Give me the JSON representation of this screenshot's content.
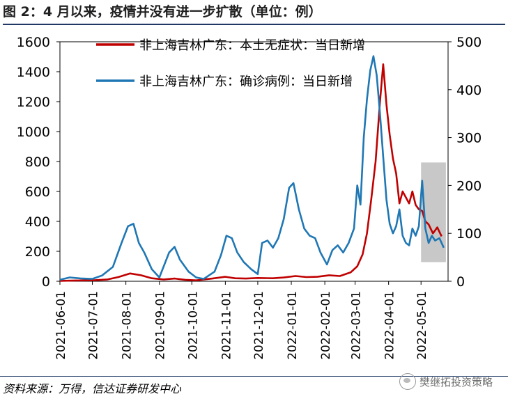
{
  "title": "图 2：4 月以来，疫情并没有进一步扩散（单位：例）",
  "source": "资料来源：万得，信达证券研发中心",
  "watermark": "樊继拓投资策略",
  "colors": {
    "series_red": "#c00000",
    "series_blue": "#1f77b4",
    "shade": "#c8c8c8"
  },
  "chart_data": {
    "type": "line",
    "x_ticks": [
      "2021-06-01",
      "2021-07-01",
      "2021-08-01",
      "2021-09-01",
      "2021-10-01",
      "2021-11-01",
      "2021-12-01",
      "2022-01-01",
      "2022-02-01",
      "2022-03-01",
      "2022-04-01",
      "2022-05-01"
    ],
    "y_left": {
      "ylim": [
        0,
        1600
      ],
      "ticks": [
        0,
        200,
        400,
        600,
        800,
        1000,
        1200,
        1400,
        1600
      ]
    },
    "y_right": {
      "ylim": [
        0,
        500
      ],
      "ticks": [
        0,
        100,
        200,
        300,
        400,
        500
      ]
    },
    "shaded_region": {
      "x": [
        "2022-05-01",
        "2022-05-24"
      ],
      "y_right": [
        40,
        248
      ]
    },
    "legend_position": "top-right",
    "series": [
      {
        "name": "非上海吉林广东：本土无症状：当日新增",
        "axis": "left",
        "points": [
          [
            "2021-06-01",
            3
          ],
          [
            "2021-06-15",
            5
          ],
          [
            "2021-07-01",
            6
          ],
          [
            "2021-07-15",
            12
          ],
          [
            "2021-07-25",
            28
          ],
          [
            "2021-08-05",
            52
          ],
          [
            "2021-08-15",
            40
          ],
          [
            "2021-08-25",
            20
          ],
          [
            "2021-09-05",
            12
          ],
          [
            "2021-09-15",
            18
          ],
          [
            "2021-09-25",
            10
          ],
          [
            "2021-10-05",
            6
          ],
          [
            "2021-10-20",
            18
          ],
          [
            "2021-11-01",
            30
          ],
          [
            "2021-11-10",
            20
          ],
          [
            "2021-11-20",
            18
          ],
          [
            "2021-12-01",
            22
          ],
          [
            "2021-12-15",
            20
          ],
          [
            "2021-12-25",
            25
          ],
          [
            "2022-01-05",
            35
          ],
          [
            "2022-01-15",
            28
          ],
          [
            "2022-01-25",
            30
          ],
          [
            "2022-02-05",
            40
          ],
          [
            "2022-02-15",
            35
          ],
          [
            "2022-02-25",
            60
          ],
          [
            "2022-03-03",
            100
          ],
          [
            "2022-03-08",
            180
          ],
          [
            "2022-03-12",
            320
          ],
          [
            "2022-03-16",
            550
          ],
          [
            "2022-03-20",
            800
          ],
          [
            "2022-03-24",
            1200
          ],
          [
            "2022-03-27",
            1450
          ],
          [
            "2022-03-30",
            1180
          ],
          [
            "2022-04-02",
            980
          ],
          [
            "2022-04-05",
            820
          ],
          [
            "2022-04-08",
            720
          ],
          [
            "2022-04-11",
            520
          ],
          [
            "2022-04-14",
            600
          ],
          [
            "2022-04-17",
            560
          ],
          [
            "2022-04-20",
            520
          ],
          [
            "2022-04-23",
            600
          ],
          [
            "2022-04-26",
            510
          ],
          [
            "2022-04-29",
            480
          ],
          [
            "2022-05-02",
            470
          ],
          [
            "2022-05-05",
            400
          ],
          [
            "2022-05-08",
            380
          ],
          [
            "2022-05-12",
            320
          ],
          [
            "2022-05-16",
            360
          ],
          [
            "2022-05-20",
            300
          ]
        ]
      },
      {
        "name": "非上海吉林广东：确诊病例：当日新增",
        "axis": "right",
        "points": [
          [
            "2021-06-01",
            3
          ],
          [
            "2021-06-10",
            8
          ],
          [
            "2021-06-20",
            6
          ],
          [
            "2021-07-01",
            5
          ],
          [
            "2021-07-10",
            12
          ],
          [
            "2021-07-20",
            30
          ],
          [
            "2021-07-28",
            80
          ],
          [
            "2021-08-03",
            115
          ],
          [
            "2021-08-08",
            120
          ],
          [
            "2021-08-13",
            80
          ],
          [
            "2021-08-18",
            60
          ],
          [
            "2021-08-25",
            25
          ],
          [
            "2021-09-01",
            8
          ],
          [
            "2021-09-10",
            60
          ],
          [
            "2021-09-15",
            72
          ],
          [
            "2021-09-20",
            45
          ],
          [
            "2021-09-28",
            20
          ],
          [
            "2021-10-05",
            8
          ],
          [
            "2021-10-12",
            5
          ],
          [
            "2021-10-22",
            20
          ],
          [
            "2021-10-28",
            55
          ],
          [
            "2021-11-02",
            95
          ],
          [
            "2021-11-07",
            90
          ],
          [
            "2021-11-12",
            60
          ],
          [
            "2021-11-18",
            40
          ],
          [
            "2021-11-25",
            25
          ],
          [
            "2021-12-01",
            15
          ],
          [
            "2021-12-05",
            80
          ],
          [
            "2021-12-10",
            85
          ],
          [
            "2021-12-15",
            70
          ],
          [
            "2021-12-20",
            90
          ],
          [
            "2021-12-25",
            130
          ],
          [
            "2021-12-30",
            195
          ],
          [
            "2022-01-03",
            205
          ],
          [
            "2022-01-08",
            150
          ],
          [
            "2022-01-13",
            110
          ],
          [
            "2022-01-18",
            95
          ],
          [
            "2022-01-23",
            90
          ],
          [
            "2022-01-28",
            60
          ],
          [
            "2022-02-03",
            35
          ],
          [
            "2022-02-08",
            65
          ],
          [
            "2022-02-13",
            75
          ],
          [
            "2022-02-18",
            60
          ],
          [
            "2022-02-23",
            80
          ],
          [
            "2022-02-28",
            110
          ],
          [
            "2022-03-03",
            200
          ],
          [
            "2022-03-06",
            160
          ],
          [
            "2022-03-09",
            300
          ],
          [
            "2022-03-12",
            380
          ],
          [
            "2022-03-15",
            440
          ],
          [
            "2022-03-18",
            470
          ],
          [
            "2022-03-21",
            430
          ],
          [
            "2022-03-24",
            350
          ],
          [
            "2022-03-27",
            260
          ],
          [
            "2022-03-30",
            170
          ],
          [
            "2022-04-02",
            120
          ],
          [
            "2022-04-05",
            100
          ],
          [
            "2022-04-08",
            115
          ],
          [
            "2022-04-11",
            150
          ],
          [
            "2022-04-14",
            95
          ],
          [
            "2022-04-17",
            80
          ],
          [
            "2022-04-20",
            75
          ],
          [
            "2022-04-23",
            110
          ],
          [
            "2022-04-26",
            95
          ],
          [
            "2022-04-29",
            115
          ],
          [
            "2022-05-02",
            210
          ],
          [
            "2022-05-05",
            110
          ],
          [
            "2022-05-08",
            80
          ],
          [
            "2022-05-11",
            95
          ],
          [
            "2022-05-14",
            85
          ],
          [
            "2022-05-18",
            90
          ],
          [
            "2022-05-22",
            70
          ]
        ]
      }
    ]
  }
}
